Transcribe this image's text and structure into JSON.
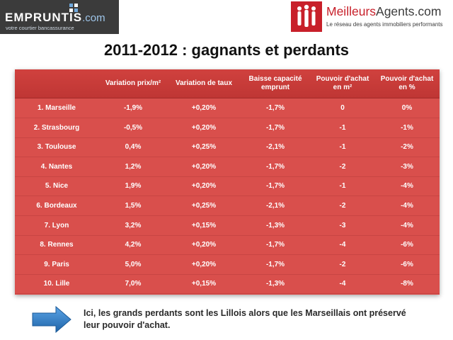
{
  "logo_left": {
    "brand": "EMPRUNTIS",
    "domain": ".com",
    "tagline": "votre courtier bancassurance"
  },
  "logo_right": {
    "name_part1": "Meilleurs",
    "name_part2": "Agents.com",
    "subtitle": "Le réseau des agents immobiliers performants"
  },
  "title": "2011-2012 : gagnants et perdants",
  "table": {
    "headers": [
      "",
      "Variation prix/m²",
      "Variation de taux",
      "Baisse capacité emprunt",
      "Pouvoir d'achat en m²",
      "Pouvoir d'achat en %"
    ],
    "rows": [
      [
        "1. Marseille",
        "-1,9%",
        "+0,20%",
        "-1,7%",
        "0",
        "0%"
      ],
      [
        "2. Strasbourg",
        "-0,5%",
        "+0,20%",
        "-1,7%",
        "-1",
        "-1%"
      ],
      [
        "3. Toulouse",
        "0,4%",
        "+0,25%",
        "-2,1%",
        "-1",
        "-2%"
      ],
      [
        "4. Nantes",
        "1,2%",
        "+0,20%",
        "-1,7%",
        "-2",
        "-3%"
      ],
      [
        "5. Nice",
        "1,9%",
        "+0,20%",
        "-1,7%",
        "-1",
        "-4%"
      ],
      [
        "6. Bordeaux",
        "1,5%",
        "+0,25%",
        "-2,1%",
        "-2",
        "-4%"
      ],
      [
        "7. Lyon",
        "3,2%",
        "+0,15%",
        "-1,3%",
        "-3",
        "-4%"
      ],
      [
        "8. Rennes",
        "4,2%",
        "+0,20%",
        "-1,7%",
        "-4",
        "-6%"
      ],
      [
        "9. Paris",
        "5,0%",
        "+0,20%",
        "-1,7%",
        "-2",
        "-6%"
      ],
      [
        "10. Lille",
        "7,0%",
        "+0,15%",
        "-1,3%",
        "-4",
        "-8%"
      ]
    ]
  },
  "note": "Ici, les grands perdants sont les Lillois alors que les Marseillais ont préservé leur pouvoir d'achat.",
  "colors": {
    "table_bg": "#d94f4c",
    "header_bg": "#c43936",
    "brand_red": "#c8202a",
    "arrow_blue": "#2f7fc6"
  },
  "icons": {
    "arrow": "arrow-right-icon"
  }
}
